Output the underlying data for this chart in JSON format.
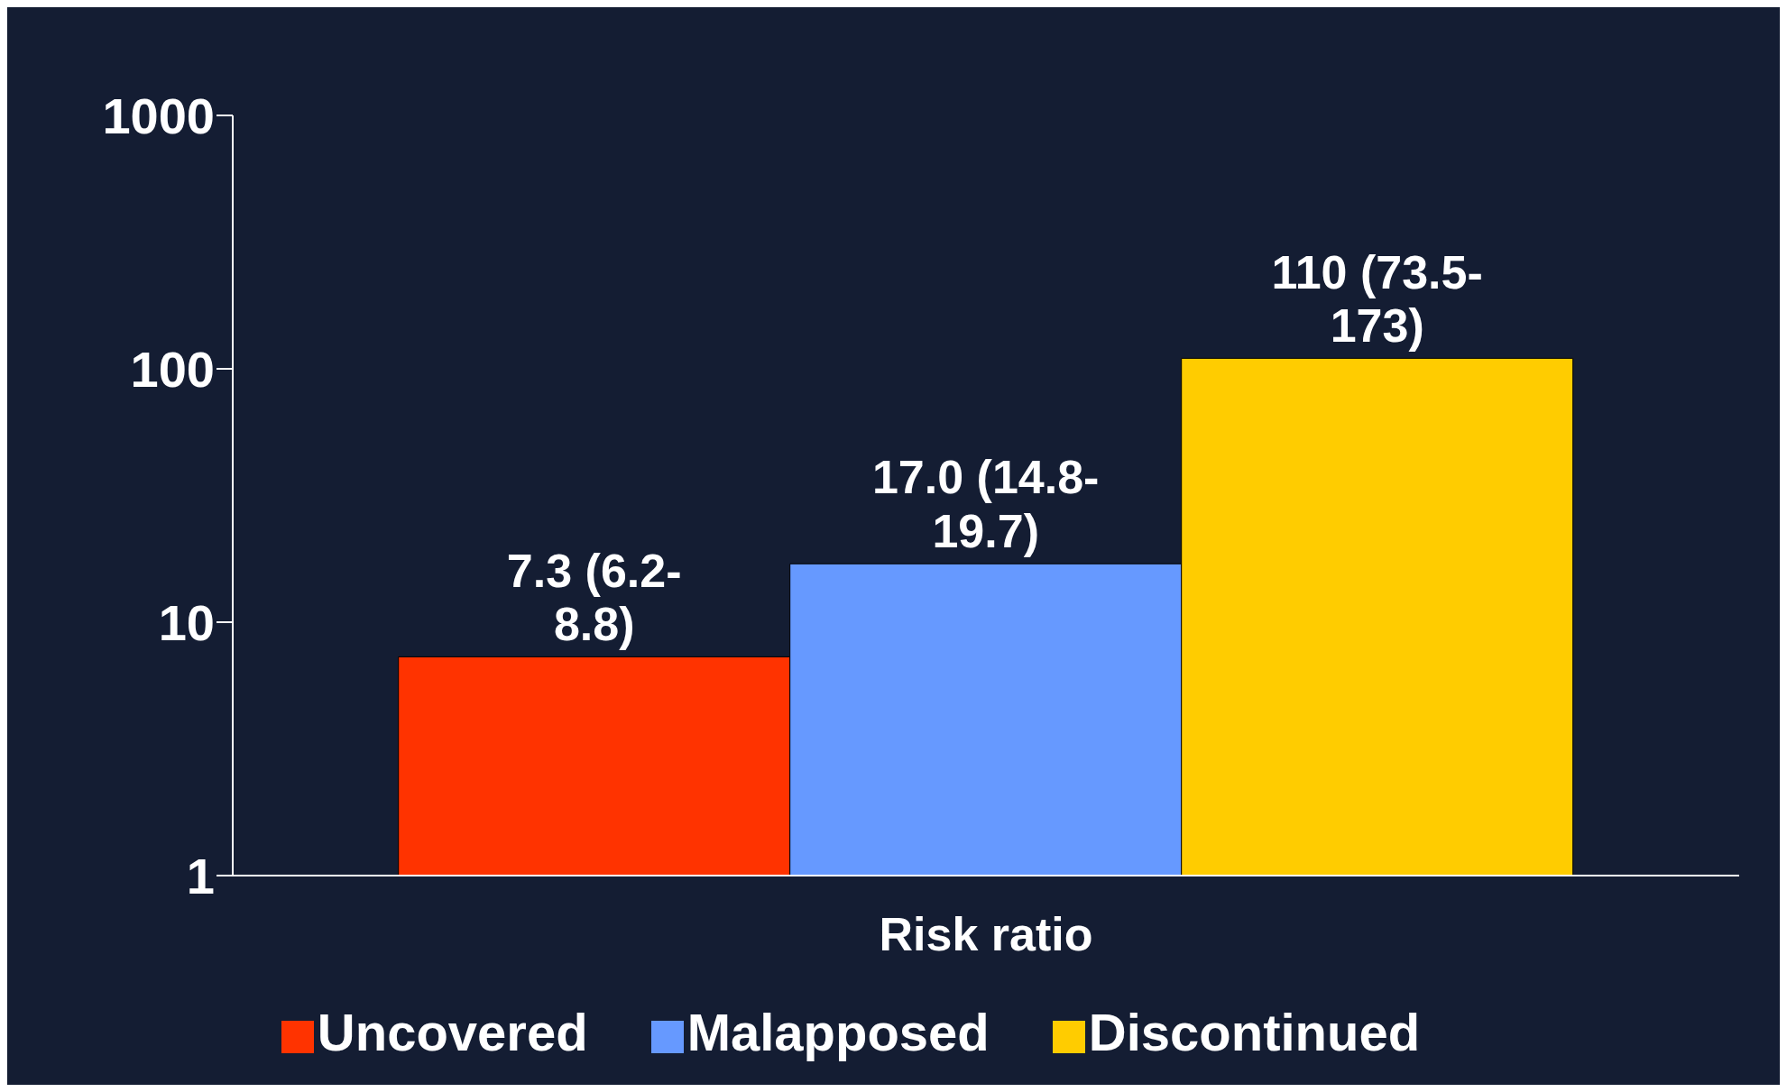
{
  "chart_data": {
    "type": "bar",
    "categories": [
      "Risk ratio"
    ],
    "series": [
      {
        "name": "Uncovered",
        "color": "#ff3300",
        "values": [
          7.3
        ],
        "value_labels": [
          "7.3 (6.2-8.8)"
        ]
      },
      {
        "name": "Malapposed",
        "color": "#6699ff",
        "values": [
          17.0
        ],
        "value_labels": [
          "17.0 (14.8-19.7)"
        ]
      },
      {
        "name": "Discontinued",
        "color": "#ffcc00",
        "values": [
          110
        ],
        "value_labels": [
          "110 (73.5-173)"
        ]
      }
    ],
    "log": "y",
    "ylim": [
      1,
      1000
    ],
    "yticks": [
      1,
      10,
      100,
      1000
    ],
    "grid": false,
    "legend": "bottom"
  }
}
